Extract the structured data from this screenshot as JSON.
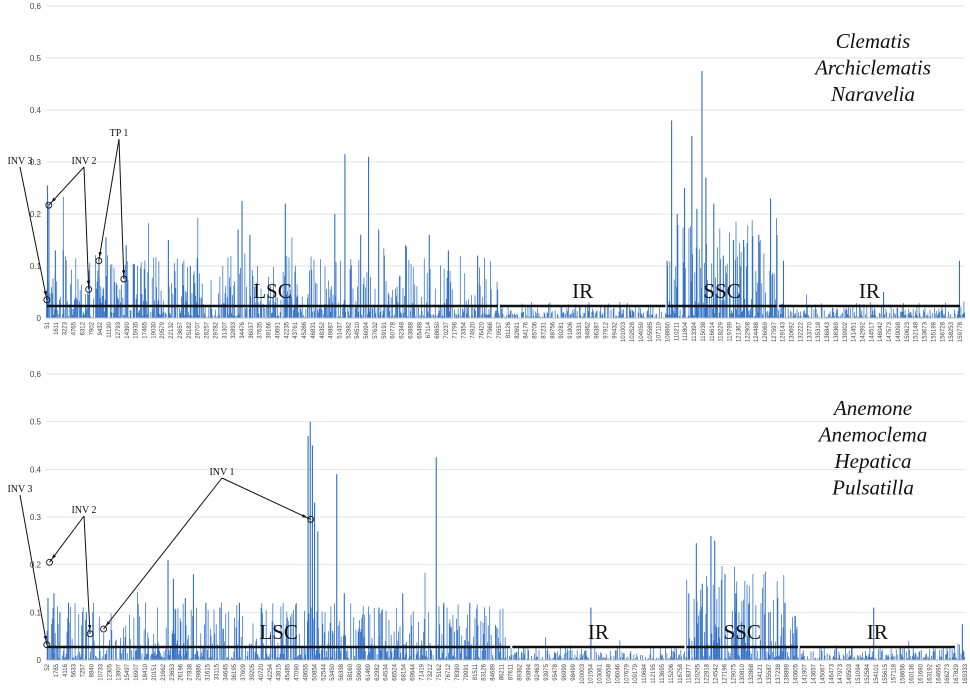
{
  "chart_data": [
    {
      "type": "bar",
      "title": "",
      "xlabel": "",
      "ylabel": "",
      "ylim": [
        0,
        0.6
      ],
      "xlim": [
        51,
        163500
      ],
      "grid": true,
      "legend": "none",
      "bar_color": "#2f6fc7",
      "y_ticks": [
        "0",
        "0.1",
        "0.2",
        "0.3",
        "0.4",
        "0.5",
        "0.6"
      ],
      "x_ticks": [
        "51",
        "1611",
        "3223",
        "4765",
        "6312",
        "7902",
        "9432",
        "11190",
        "12793",
        "14390",
        "15935",
        "17465",
        "19030",
        "20579",
        "22132",
        "23657",
        "25182",
        "26707",
        "28257",
        "29782",
        "31307",
        "32893",
        "34476",
        "36037",
        "37635",
        "39166",
        "40691",
        "42235",
        "43761",
        "45286",
        "46831",
        "48352",
        "49887",
        "51437",
        "52982",
        "54510",
        "56094",
        "57632",
        "59191",
        "60778",
        "62348",
        "63888",
        "65488",
        "67114",
        "68650",
        "70237",
        "71796",
        "73354",
        "74920",
        "76420",
        "77966",
        "79557",
        "81126",
        "82691",
        "84176",
        "85706",
        "87231",
        "88756",
        "90281",
        "91806",
        "93331",
        "94862",
        "96387",
        "97912",
        "99432",
        "101003",
        "102528",
        "104059",
        "105585",
        "107110",
        "108660",
        "110211",
        "111804",
        "113394",
        "115038",
        "116614",
        "118229",
        "119799",
        "121367",
        "122908",
        "124488",
        "126069",
        "127597",
        "129143",
        "130692",
        "132222",
        "133770",
        "135318",
        "136843",
        "138369",
        "139902",
        "141451",
        "142992",
        "144517",
        "146042",
        "147573",
        "149098",
        "150623",
        "152148",
        "153673",
        "155198",
        "156728",
        "158253",
        "159778"
      ],
      "regions": [
        {
          "label": "LSC",
          "x0": 51,
          "x1": 80600
        },
        {
          "label": "IR",
          "x0": 80600,
          "x1": 110400
        },
        {
          "label": "SSC",
          "x0": 110400,
          "x1": 130200
        },
        {
          "label": "IR",
          "x0": 130200,
          "x1": 162800
        }
      ],
      "genera": [
        "Clematis",
        "Archiclematis",
        "Naravelia"
      ],
      "annotations": [
        {
          "label": "INV 3",
          "targets": [
            {
              "x": 200,
              "y": 0.035
            }
          ]
        },
        {
          "label": "INV 2",
          "targets": [
            {
              "x": 550,
              "y": 0.217
            },
            {
              "x": 7650,
              "y": 0.055
            }
          ]
        },
        {
          "label": "TP 1",
          "targets": [
            {
              "x": 9450,
              "y": 0.11
            },
            {
              "x": 13900,
              "y": 0.075
            }
          ]
        }
      ],
      "peaks": [
        {
          "x": 300,
          "y": 0.255
        },
        {
          "x": 550,
          "y": 0.22
        },
        {
          "x": 1700,
          "y": 0.13
        },
        {
          "x": 3100,
          "y": 0.13
        },
        {
          "x": 9450,
          "y": 0.11
        },
        {
          "x": 10700,
          "y": 0.155
        },
        {
          "x": 14300,
          "y": 0.14
        },
        {
          "x": 21800,
          "y": 0.15
        },
        {
          "x": 25700,
          "y": 0.1
        },
        {
          "x": 34200,
          "y": 0.17
        },
        {
          "x": 34900,
          "y": 0.225
        },
        {
          "x": 36300,
          "y": 0.16
        },
        {
          "x": 42600,
          "y": 0.22
        },
        {
          "x": 51400,
          "y": 0.2
        },
        {
          "x": 53200,
          "y": 0.315
        },
        {
          "x": 56000,
          "y": 0.16
        },
        {
          "x": 57400,
          "y": 0.31
        },
        {
          "x": 59200,
          "y": 0.17
        },
        {
          "x": 64000,
          "y": 0.14
        },
        {
          "x": 68200,
          "y": 0.16
        },
        {
          "x": 71600,
          "y": 0.13
        },
        {
          "x": 76800,
          "y": 0.12
        },
        {
          "x": 110500,
          "y": 0.11
        },
        {
          "x": 111300,
          "y": 0.38
        },
        {
          "x": 112300,
          "y": 0.2
        },
        {
          "x": 113600,
          "y": 0.25
        },
        {
          "x": 114900,
          "y": 0.35
        },
        {
          "x": 115800,
          "y": 0.21
        },
        {
          "x": 116700,
          "y": 0.475
        },
        {
          "x": 117400,
          "y": 0.27
        },
        {
          "x": 118800,
          "y": 0.22
        },
        {
          "x": 120500,
          "y": 0.12
        },
        {
          "x": 122300,
          "y": 0.15
        },
        {
          "x": 124100,
          "y": 0.15
        },
        {
          "x": 126800,
          "y": 0.16
        },
        {
          "x": 128900,
          "y": 0.23
        },
        {
          "x": 131200,
          "y": 0.11
        },
        {
          "x": 149000,
          "y": 0.05
        },
        {
          "x": 162500,
          "y": 0.11
        }
      ]
    },
    {
      "type": "bar",
      "title": "",
      "xlabel": "",
      "ylabel": "",
      "ylim": [
        0,
        0.6
      ],
      "xlim": [
        52,
        170000
      ],
      "grid": true,
      "legend": "none",
      "bar_color": "#2f6fc7",
      "y_ticks": [
        "0",
        "0.1",
        "0.2",
        "0.3",
        "0.4",
        "0.5",
        "0.6"
      ],
      "x_ticks": [
        "52",
        "1785",
        "4116",
        "5633",
        "7257",
        "8840",
        "10733",
        "12305",
        "13907",
        "15497",
        "16907",
        "18410",
        "20151",
        "21662",
        "23653",
        "26196",
        "27838",
        "29886",
        "31615",
        "33115",
        "34645",
        "36195",
        "37609",
        "39205",
        "40720",
        "42254",
        "43815",
        "45485",
        "47090",
        "48655",
        "50854",
        "52544",
        "53450",
        "56338",
        "58160",
        "59660",
        "61469",
        "62982",
        "64534",
        "66524",
        "68154",
        "69644",
        "71419",
        "73212",
        "75162",
        "76712",
        "78390",
        "79991",
        "81511",
        "83126",
        "84689",
        "86211",
        "87611",
        "89362",
        "90894",
        "92463",
        "93975",
        "95478",
        "96999",
        "98499",
        "100003",
        "101554",
        "103061",
        "104558",
        "106046",
        "107679",
        "109179",
        "110684",
        "112195",
        "113695",
        "115206",
        "116758",
        "118377",
        "120295",
        "122818",
        "124542",
        "127196",
        "129075",
        "130810",
        "132868",
        "134121",
        "135587",
        "137238",
        "138899",
        "140605",
        "141907",
        "143657",
        "145067",
        "146473",
        "147973",
        "149503",
        "151094",
        "152584",
        "154101",
        "155615",
        "157118",
        "158656",
        "160136",
        "161680",
        "163192",
        "164695",
        "166273",
        "167829",
        "169333"
      ],
      "regions": [
        {
          "label": "LSC",
          "x0": 52,
          "x1": 86100
        },
        {
          "label": "IR",
          "x0": 86100,
          "x1": 118300
        },
        {
          "label": "SSC",
          "x0": 118300,
          "x1": 139300
        },
        {
          "label": "IR",
          "x0": 139300,
          "x1": 168300
        }
      ],
      "genera": [
        "Anemone",
        "Anemoclema",
        "Hepatica",
        "Pulsatilla"
      ],
      "annotations": [
        {
          "label": "INV 3",
          "targets": [
            {
              "x": 200,
              "y": 0.032
            }
          ]
        },
        {
          "label": "INV 2",
          "targets": [
            {
              "x": 700,
              "y": 0.205
            },
            {
              "x": 8200,
              "y": 0.055
            }
          ]
        },
        {
          "label": "INV 1",
          "targets": [
            {
              "x": 10700,
              "y": 0.065
            },
            {
              "x": 49000,
              "y": 0.295
            }
          ]
        }
      ],
      "peaks": [
        {
          "x": 400,
          "y": 0.13
        },
        {
          "x": 1500,
          "y": 0.14
        },
        {
          "x": 2600,
          "y": 0.1
        },
        {
          "x": 4200,
          "y": 0.12
        },
        {
          "x": 7500,
          "y": 0.1
        },
        {
          "x": 22600,
          "y": 0.21
        },
        {
          "x": 23600,
          "y": 0.17
        },
        {
          "x": 25800,
          "y": 0.13
        },
        {
          "x": 27300,
          "y": 0.18
        },
        {
          "x": 29600,
          "y": 0.12
        },
        {
          "x": 32200,
          "y": 0.11
        },
        {
          "x": 35800,
          "y": 0.12
        },
        {
          "x": 48500,
          "y": 0.47
        },
        {
          "x": 48900,
          "y": 0.5
        },
        {
          "x": 49300,
          "y": 0.45
        },
        {
          "x": 49700,
          "y": 0.33
        },
        {
          "x": 50300,
          "y": 0.27
        },
        {
          "x": 53800,
          "y": 0.39
        },
        {
          "x": 55200,
          "y": 0.14
        },
        {
          "x": 61600,
          "y": 0.11
        },
        {
          "x": 66000,
          "y": 0.14
        },
        {
          "x": 72200,
          "y": 0.425
        },
        {
          "x": 73600,
          "y": 0.12
        },
        {
          "x": 78400,
          "y": 0.12
        },
        {
          "x": 83200,
          "y": 0.07
        },
        {
          "x": 100800,
          "y": 0.11
        },
        {
          "x": 118900,
          "y": 0.14
        },
        {
          "x": 120300,
          "y": 0.245
        },
        {
          "x": 121400,
          "y": 0.16
        },
        {
          "x": 123000,
          "y": 0.26
        },
        {
          "x": 123700,
          "y": 0.25
        },
        {
          "x": 125600,
          "y": 0.18
        },
        {
          "x": 127600,
          "y": 0.14
        },
        {
          "x": 130100,
          "y": 0.12
        },
        {
          "x": 133700,
          "y": 0.1
        },
        {
          "x": 136700,
          "y": 0.12
        },
        {
          "x": 153100,
          "y": 0.11
        },
        {
          "x": 169500,
          "y": 0.075
        }
      ]
    }
  ]
}
